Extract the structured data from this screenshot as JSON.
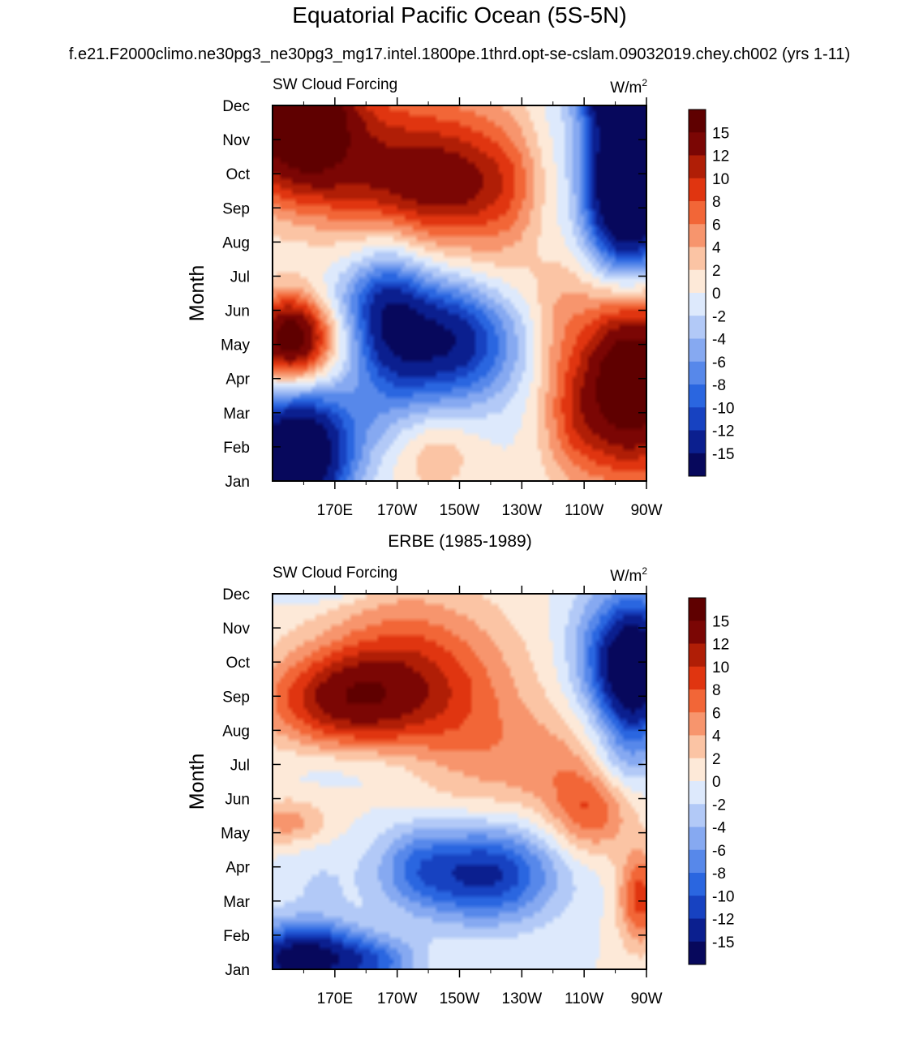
{
  "title": "Equatorial Pacific Ocean (5S-5N)",
  "subtitle": "f.e21.F2000climo.ne30pg3_ne30pg3_mg17.intel.1800pe.1thrd.opt-se-cslam.09032019.chey.ch002 (yrs 1-11)",
  "second_panel_title": "ERBE (1985-1989)",
  "chart_data": [
    {
      "type": "heatmap",
      "title": "SW Cloud Forcing",
      "units": "W/m",
      "units_sup": "2",
      "xlabel": "",
      "ylabel": "Month",
      "x_unit": "degrees east",
      "xlim": [
        150,
        270
      ],
      "x_ticks": [
        170,
        190,
        210,
        230,
        250,
        270
      ],
      "x_tick_labels": [
        "170E",
        "170W",
        "150W",
        "130W",
        "110W",
        "90W"
      ],
      "y_tick_labels": [
        "Jan",
        "Feb",
        "Mar",
        "Apr",
        "May",
        "Jun",
        "Jul",
        "Aug",
        "Sep",
        "Oct",
        "Nov",
        "Dec"
      ],
      "contour_levels": [
        -15,
        -12,
        -10,
        -8,
        -6,
        -4,
        -2,
        0,
        2,
        4,
        6,
        8,
        10,
        12,
        15
      ],
      "colorbar_labels": [
        "15",
        "12",
        "10",
        "8",
        "6",
        "4",
        "2",
        "0",
        "-2",
        "-4",
        "-6",
        "-8",
        "-10",
        "-12",
        "-15"
      ],
      "colors": [
        "#07085c",
        "#0b1f8f",
        "#1742c1",
        "#2a66e0",
        "#5788ea",
        "#86a9f1",
        "#b2c9f7",
        "#dde9fc",
        "#fde9d8",
        "#fbc4a4",
        "#f7956d",
        "#f26637",
        "#e03510",
        "#b01e06",
        "#7b0604",
        "#5f0000"
      ],
      "features": [
        {
          "x": 158,
          "y": 10.9,
          "sx": 12,
          "sy": 1.4,
          "v": 18
        },
        {
          "x": 185,
          "y": 10.3,
          "sx": 34,
          "sy": 1.3,
          "v": 7
        },
        {
          "x": 210,
          "y": 8.5,
          "sx": 22,
          "sy": 1.2,
          "v": 8
        },
        {
          "x": 180,
          "y": 8.6,
          "sx": 30,
          "sy": 1.0,
          "v": 5
        },
        {
          "x": 197,
          "y": 11.9,
          "sx": 40,
          "sy": 0.35,
          "v": -3
        },
        {
          "x": 258,
          "y": 11.6,
          "sx": 7,
          "sy": 0.7,
          "v": -16
        },
        {
          "x": 264,
          "y": 8.8,
          "sx": 10,
          "sy": 2.0,
          "v": -28
        },
        {
          "x": 238,
          "y": 8.6,
          "sx": 6,
          "sy": 2.5,
          "v": -3
        },
        {
          "x": 205,
          "y": 4.2,
          "sx": 16,
          "sy": 1.3,
          "v": -16
        },
        {
          "x": 187,
          "y": 4.8,
          "sx": 8,
          "sy": 1.5,
          "v": -8
        },
        {
          "x": 178,
          "y": 5.4,
          "sx": 12,
          "sy": 0.7,
          "v": -3
        },
        {
          "x": 156,
          "y": 4.2,
          "sx": 9,
          "sy": 0.9,
          "v": 18
        },
        {
          "x": 157,
          "y": 0.6,
          "sx": 12,
          "sy": 1.3,
          "v": -22
        },
        {
          "x": 175,
          "y": 1.8,
          "sx": 20,
          "sy": 0.9,
          "v": -3
        },
        {
          "x": 202,
          "y": 0.9,
          "sx": 10,
          "sy": 0.9,
          "v": 4
        },
        {
          "x": 220,
          "y": 6.0,
          "sx": 25,
          "sy": 1.2,
          "v": 3
        },
        {
          "x": 265,
          "y": 3.0,
          "sx": 13,
          "sy": 2.0,
          "v": 20
        },
        {
          "x": 246,
          "y": 1.6,
          "sx": 7,
          "sy": 1.2,
          "v": 4
        },
        {
          "x": 240,
          "y": 4.6,
          "sx": 6,
          "sy": 1.5,
          "v": 3
        }
      ]
    },
    {
      "type": "heatmap",
      "title": "SW Cloud Forcing",
      "units": "W/m",
      "units_sup": "2",
      "xlabel": "",
      "ylabel": "Month",
      "x_unit": "degrees east",
      "xlim": [
        150,
        270
      ],
      "x_ticks": [
        170,
        190,
        210,
        230,
        250,
        270
      ],
      "x_tick_labels": [
        "170E",
        "170W",
        "150W",
        "130W",
        "110W",
        "90W"
      ],
      "y_tick_labels": [
        "Jan",
        "Feb",
        "Mar",
        "Apr",
        "May",
        "Jun",
        "Jul",
        "Aug",
        "Sep",
        "Oct",
        "Nov",
        "Dec"
      ],
      "contour_levels": [
        -15,
        -12,
        -10,
        -8,
        -6,
        -4,
        -2,
        0,
        2,
        4,
        6,
        8,
        10,
        12,
        15
      ],
      "colorbar_labels": [
        "15",
        "12",
        "10",
        "8",
        "6",
        "4",
        "2",
        "0",
        "-2",
        "-4",
        "-6",
        "-8",
        "-10",
        "-12",
        "-15"
      ],
      "colors": [
        "#07085c",
        "#0b1f8f",
        "#1742c1",
        "#2a66e0",
        "#5788ea",
        "#86a9f1",
        "#b2c9f7",
        "#dde9fc",
        "#fde9d8",
        "#fbc4a4",
        "#f7956d",
        "#f26637",
        "#e03510",
        "#b01e06",
        "#7b0604",
        "#5f0000"
      ],
      "features": [
        {
          "x": 172,
          "y": 7.9,
          "sx": 18,
          "sy": 1.0,
          "v": 11
        },
        {
          "x": 190,
          "y": 8.9,
          "sx": 18,
          "sy": 1.6,
          "v": 7
        },
        {
          "x": 213,
          "y": 7.4,
          "sx": 16,
          "sy": 2.0,
          "v": 5
        },
        {
          "x": 240,
          "y": 6.0,
          "sx": 14,
          "sy": 1.1,
          "v": 4
        },
        {
          "x": 252,
          "y": 4.6,
          "sx": 9,
          "sy": 0.9,
          "v": 7
        },
        {
          "x": 155,
          "y": 4.3,
          "sx": 9,
          "sy": 0.5,
          "v": 5
        },
        {
          "x": 218,
          "y": 2.8,
          "sx": 16,
          "sy": 1.0,
          "v": -13
        },
        {
          "x": 195,
          "y": 3.0,
          "sx": 9,
          "sy": 0.9,
          "v": -5
        },
        {
          "x": 165,
          "y": 2.6,
          "sx": 10,
          "sy": 0.9,
          "v": -2
        },
        {
          "x": 160,
          "y": 0.3,
          "sx": 14,
          "sy": 0.7,
          "v": -18
        },
        {
          "x": 185,
          "y": 0.2,
          "sx": 9,
          "sy": 0.5,
          "v": -6
        },
        {
          "x": 165,
          "y": 11.8,
          "sx": 10,
          "sy": 0.5,
          "v": -13
        },
        {
          "x": 266,
          "y": 8.8,
          "sx": 8,
          "sy": 1.4,
          "v": -22
        },
        {
          "x": 252,
          "y": 9.4,
          "sx": 7,
          "sy": 1.4,
          "v": -4
        },
        {
          "x": 268,
          "y": 2.1,
          "sx": 5,
          "sy": 1.0,
          "v": 9
        },
        {
          "x": 262,
          "y": 6.0,
          "sx": 7,
          "sy": 0.7,
          "v": -3
        },
        {
          "x": 178,
          "y": 5.9,
          "sx": 18,
          "sy": 0.5,
          "v": -2
        }
      ]
    }
  ]
}
